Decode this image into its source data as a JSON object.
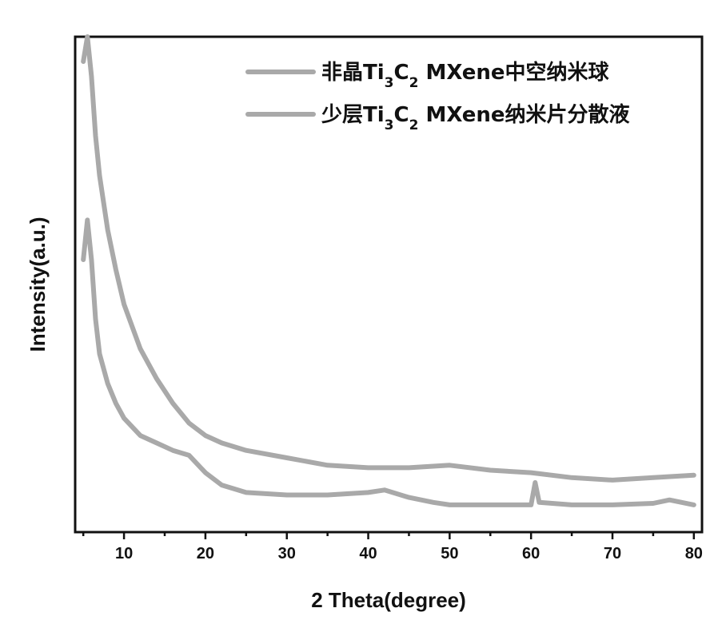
{
  "chart_data": {
    "type": "line",
    "xlabel": "2 Theta(degree)",
    "ylabel": "Intensity(a.u.)",
    "xlim": [
      4,
      81
    ],
    "ylim": [
      0,
      100
    ],
    "x_ticks": [
      10,
      20,
      30,
      40,
      50,
      60,
      70,
      80
    ],
    "y_ticks_visible": false,
    "grid": false,
    "legend_position": "top-right",
    "series_color": "#a9a9a9",
    "series": [
      {
        "name_parts": [
          "非晶Ti",
          "3",
          "C",
          "2",
          " MXene中空纳米球"
        ],
        "x": [
          5,
          5.5,
          6,
          6.5,
          7,
          8,
          9,
          10,
          12,
          14,
          16,
          18,
          20,
          22,
          25,
          30,
          35,
          40,
          45,
          50,
          55,
          60,
          65,
          70,
          75,
          80
        ],
        "y": [
          95,
          100,
          92,
          80,
          72,
          61,
          53,
          46,
          37,
          31,
          26,
          22,
          19.5,
          18,
          16.5,
          15,
          13.5,
          13,
          13,
          13.5,
          12.5,
          12,
          11,
          10.5,
          11,
          11.5
        ]
      },
      {
        "name_parts": [
          "少层Ti",
          "3",
          "C",
          "2",
          " MXene纳米片分散液"
        ],
        "x": [
          5,
          5.5,
          6,
          6.5,
          7,
          8,
          9,
          10,
          12,
          14,
          16,
          18,
          20,
          22,
          25,
          30,
          35,
          40,
          42,
          45,
          48,
          50,
          55,
          60,
          60.5,
          61,
          65,
          70,
          75,
          77,
          80
        ],
        "y": [
          55,
          63,
          55,
          43,
          36,
          30,
          26,
          23,
          19.5,
          18,
          16.5,
          15.5,
          12,
          9.5,
          8,
          7.5,
          7.5,
          8,
          8.5,
          7,
          6,
          5.5,
          5.5,
          5.5,
          10,
          6,
          5.5,
          5.5,
          5.8,
          6.5,
          5.5
        ]
      }
    ]
  }
}
